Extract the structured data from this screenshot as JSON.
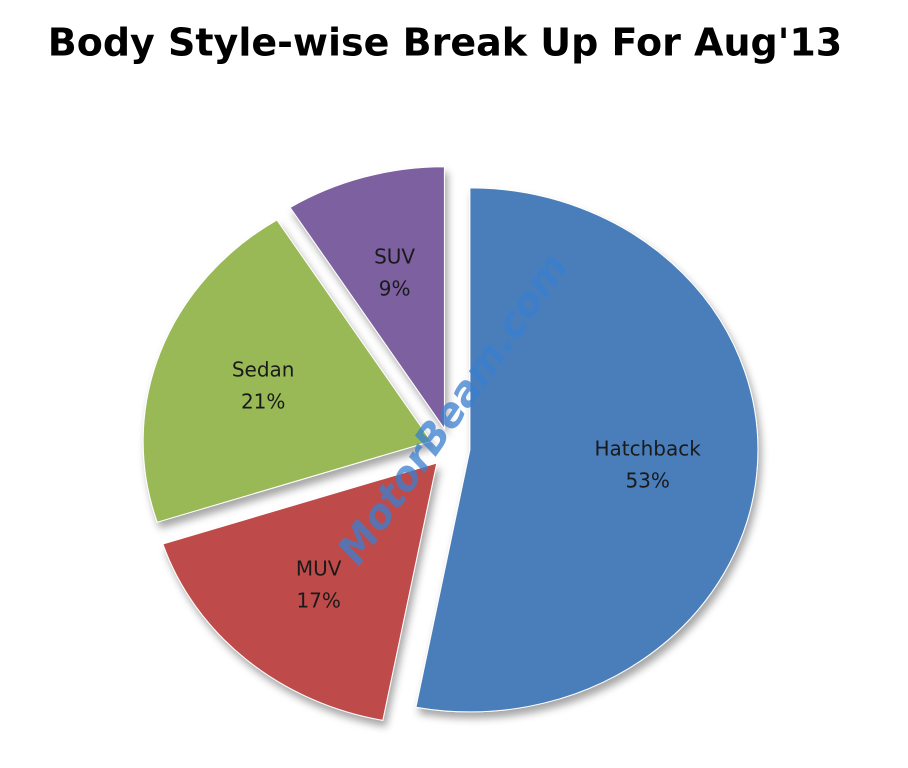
{
  "chart_data": {
    "type": "pie",
    "title": "Body Style-wise Break Up For Aug'13",
    "categories": [
      "Hatchback",
      "MUV",
      "Sedan",
      "SUV"
    ],
    "values": [
      53,
      17,
      21,
      9
    ],
    "value_labels": [
      "53%",
      "17%",
      "21%",
      "9%"
    ],
    "colors": [
      "#4a7ebb",
      "#be4b48",
      "#98b954",
      "#7d60a0"
    ],
    "watermark": "MotorBeam.com"
  }
}
